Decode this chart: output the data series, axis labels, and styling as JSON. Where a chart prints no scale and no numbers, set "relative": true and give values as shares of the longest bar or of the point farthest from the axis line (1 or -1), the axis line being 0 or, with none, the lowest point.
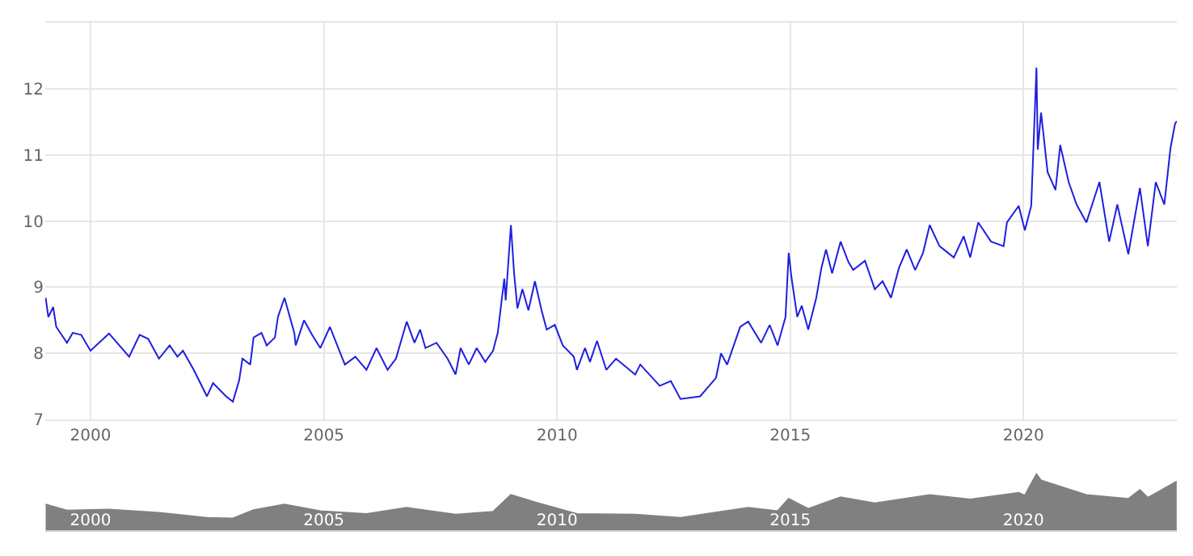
{
  "chart_data": [
    {
      "type": "line",
      "x": [
        "1999-01-15",
        "1999-02-05",
        "1999-03-15",
        "1999-04-08",
        "1999-07-01",
        "1999-08-15",
        "1999-10-20",
        "2000-01-01",
        "2000-05-25",
        "2000-10-30",
        "2001-01-20",
        "2001-03-28",
        "2001-06-20",
        "2001-09-12",
        "2001-11-12",
        "2001-12-25",
        "2002-03-20",
        "2002-07-01",
        "2002-08-18",
        "2002-11-28",
        "2003-01-20",
        "2003-03-10",
        "2003-04-05",
        "2003-06-05",
        "2003-07-01",
        "2003-09-01",
        "2003-10-12",
        "2003-12-15",
        "2004-01-08",
        "2004-02-28",
        "2004-05-15",
        "2004-05-26",
        "2004-07-30",
        "2004-10-01",
        "2004-12-05",
        "2005-02-18",
        "2005-04-08",
        "2005-06-15",
        "2005-09-05",
        "2005-12-01",
        "2006-02-18",
        "2006-05-15",
        "2006-07-20",
        "2006-10-12",
        "2006-12-12",
        "2007-01-25",
        "2007-03-08",
        "2007-06-02",
        "2007-08-28",
        "2007-10-30",
        "2007-12-08",
        "2008-02-10",
        "2008-04-12",
        "2008-06-18",
        "2008-08-18",
        "2008-09-24",
        "2008-11-14",
        "2008-11-25",
        "2009-01-05",
        "2009-01-30",
        "2009-02-25",
        "2009-04-05",
        "2009-05-22",
        "2009-07-12",
        "2009-09-02",
        "2009-10-12",
        "2009-12-15",
        "2010-02-15",
        "2010-05-12",
        "2010-06-06",
        "2010-08-08",
        "2010-09-16",
        "2010-11-10",
        "2011-01-22",
        "2011-04-08",
        "2011-09-05",
        "2011-10-15",
        "2012-03-15",
        "2012-06-10",
        "2012-08-25",
        "2013-01-25",
        "2013-05-30",
        "2013-07-08",
        "2013-08-25",
        "2013-12-05",
        "2014-02-06",
        "2014-05-18",
        "2014-07-24",
        "2014-09-24",
        "2014-11-25",
        "2014-12-20",
        "2015-01-12",
        "2015-02-25",
        "2015-04-01",
        "2015-05-22",
        "2015-07-24",
        "2015-09-02",
        "2015-10-08",
        "2015-11-25",
        "2016-01-30",
        "2016-04-01",
        "2016-05-08",
        "2016-08-08",
        "2016-10-24",
        "2016-12-24",
        "2017-02-28",
        "2017-05-01",
        "2017-07-01",
        "2017-09-05",
        "2017-11-06",
        "2017-12-28",
        "2018-03-15",
        "2018-07-05",
        "2018-09-20",
        "2018-11-10",
        "2019-01-12",
        "2019-04-22",
        "2019-07-30",
        "2019-08-25",
        "2019-11-25",
        "2020-01-12",
        "2020-03-02",
        "2020-04-12",
        "2020-04-22",
        "2020-05-18",
        "2020-07-08",
        "2020-09-08",
        "2020-10-15",
        "2020-12-20",
        "2021-02-20",
        "2021-05-08",
        "2021-08-18",
        "2021-11-02",
        "2022-01-05",
        "2022-04-01",
        "2022-07-01",
        "2022-09-01",
        "2022-11-02",
        "2023-01-08",
        "2023-02-25",
        "2023-04-02",
        "2023-04-15"
      ],
      "series": [
        {
          "color": "#1f1fe0",
          "values": [
            8.84,
            8.55,
            8.7,
            8.4,
            8.16,
            8.31,
            8.28,
            8.04,
            8.3,
            7.95,
            8.28,
            8.22,
            7.92,
            8.12,
            7.95,
            8.04,
            7.75,
            7.35,
            7.55,
            7.35,
            7.27,
            7.59,
            7.92,
            7.83,
            8.24,
            8.31,
            8.12,
            8.24,
            8.55,
            8.84,
            8.31,
            8.12,
            8.5,
            8.28,
            8.08,
            8.4,
            8.16,
            7.83,
            7.95,
            7.75,
            8.08,
            7.75,
            7.92,
            8.48,
            8.16,
            8.36,
            8.08,
            8.16,
            7.92,
            7.68,
            8.08,
            7.83,
            8.08,
            7.87,
            8.04,
            8.31,
            9.13,
            8.8,
            9.94,
            9.21,
            8.68,
            8.97,
            8.65,
            9.09,
            8.65,
            8.36,
            8.43,
            8.12,
            7.95,
            7.75,
            8.08,
            7.87,
            8.19,
            7.75,
            7.92,
            7.68,
            7.83,
            7.51,
            7.58,
            7.31,
            7.35,
            7.63,
            8.0,
            7.83,
            8.4,
            8.48,
            8.16,
            8.43,
            8.12,
            8.55,
            9.52,
            9.13,
            8.55,
            8.72,
            8.36,
            8.84,
            9.29,
            9.57,
            9.21,
            9.69,
            9.38,
            9.26,
            9.4,
            8.97,
            9.09,
            8.84,
            9.29,
            9.57,
            9.26,
            9.52,
            9.94,
            9.62,
            9.45,
            9.77,
            9.45,
            9.98,
            9.69,
            9.62,
            9.98,
            10.23,
            9.86,
            10.23,
            12.32,
            11.08,
            11.64,
            10.74,
            10.47,
            11.15,
            10.59,
            10.25,
            9.98,
            10.59,
            9.69,
            10.25,
            9.5,
            10.5,
            9.62,
            10.59,
            10.25,
            11.1,
            11.47,
            11.51
          ]
        }
      ],
      "xlim": [
        "1999-01-12",
        "2023-04-16"
      ],
      "xticks": [
        "2000",
        "2005",
        "2010",
        "2015",
        "2020"
      ],
      "ylim": [
        7,
        13
      ],
      "yticks": [
        7,
        8,
        9,
        10,
        11,
        12,
        {
          "value": 13,
          "label": null
        }
      ],
      "grid": true,
      "marker": "none",
      "line_style": "solid"
    },
    {
      "type": "area",
      "relative": true,
      "x": [
        "1999-01-15",
        "1999-07-01",
        "2000-05-25",
        "2001-06-20",
        "2002-07-01",
        "2003-01-20",
        "2003-07-01",
        "2004-02-28",
        "2004-12-05",
        "2005-12-01",
        "2006-10-12",
        "2007-10-30",
        "2008-08-18",
        "2009-01-05",
        "2009-07-12",
        "2010-06-06",
        "2011-09-05",
        "2012-08-25",
        "2013-07-08",
        "2014-02-06",
        "2014-09-24",
        "2014-12-20",
        "2015-05-22",
        "2016-01-30",
        "2016-10-24",
        "2017-12-28",
        "2018-11-10",
        "2019-11-25",
        "2020-01-12",
        "2020-04-12",
        "2020-05-18",
        "2020-12-20",
        "2021-05-08",
        "2022-04-01",
        "2022-07-01",
        "2022-09-01",
        "2023-04-15"
      ],
      "series": [
        {
          "color": "#808080",
          "values": [
            0.46,
            0.35,
            0.37,
            0.31,
            0.22,
            0.21,
            0.36,
            0.46,
            0.34,
            0.29,
            0.4,
            0.28,
            0.33,
            0.63,
            0.5,
            0.29,
            0.28,
            0.22,
            0.33,
            0.4,
            0.34,
            0.56,
            0.38,
            0.59,
            0.48,
            0.63,
            0.55,
            0.67,
            0.62,
            1,
            0.89,
            0.73,
            0.63,
            0.56,
            0.72,
            0.58,
            0.87
          ]
        }
      ],
      "xlim": [
        "1999-01-12",
        "2023-04-16"
      ],
      "xticks": [
        "2000",
        "2005",
        "2010",
        "2015",
        "2020"
      ],
      "tick_labels": "x"
    }
  ]
}
